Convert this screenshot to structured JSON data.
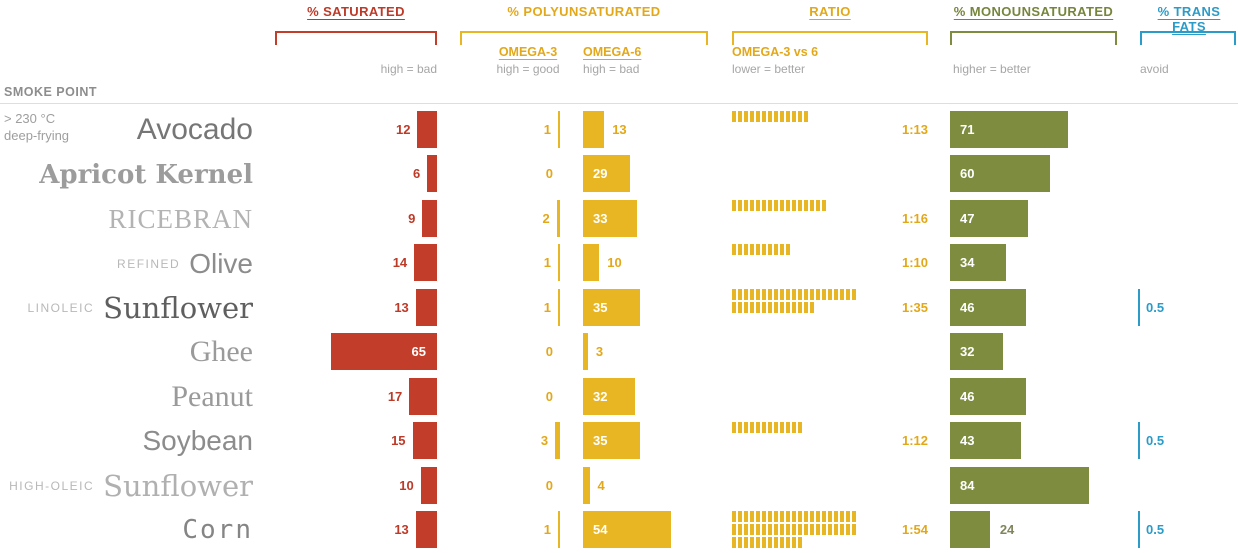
{
  "header": {
    "saturated": {
      "label": "% SATURATED",
      "note": "high = bad"
    },
    "polyunsaturated": {
      "label": "% POLYUNSATURATED"
    },
    "omega3": {
      "label": "OMEGA-3",
      "note": "high = good"
    },
    "omega6": {
      "label": "OMEGA-6",
      "note": "high = bad"
    },
    "ratio": {
      "label": "RATIO",
      "sublabel": "OMEGA-3 vs 6",
      "note": "lower = better"
    },
    "monounsaturated": {
      "label": "% MONOUNSATURATED",
      "note": "higher = better"
    },
    "trans_fats": {
      "label": "% TRANS FATS",
      "note": "avoid"
    }
  },
  "smoke_point": {
    "label": "SMOKE POINT",
    "value": "> 230 °C",
    "desc": "deep-frying"
  },
  "colors": {
    "saturated": "#c23e2b",
    "polyunsaturated": "#e9b623",
    "monounsaturated": "#7d8c3f",
    "trans_fats": "#2b9bc7"
  },
  "chart_data": {
    "type": "bar",
    "title": "",
    "value_unit": "percent of total fat",
    "ratio_meaning": "omega-3 : omega-6",
    "legend_position": "top",
    "rows": [
      {
        "prefix": "",
        "name": "Avocado",
        "name_style": "sans-light",
        "saturated": 12,
        "omega3": 1,
        "omega6": 13,
        "ratio": "1:13",
        "mono": 71,
        "trans": null
      },
      {
        "prefix": "",
        "name": "Apricot Kernel",
        "name_style": "slab",
        "saturated": 6,
        "omega3": 0,
        "omega6": 29,
        "ratio": null,
        "mono": 60,
        "trans": null
      },
      {
        "prefix": "",
        "name": "RICEBRAN",
        "name_style": "serif-caps",
        "saturated": 9,
        "omega3": 2,
        "omega6": 33,
        "ratio": "1:16",
        "mono": 47,
        "trans": null
      },
      {
        "prefix": "REFINED",
        "name": "Olive",
        "name_style": "sans",
        "saturated": 14,
        "omega3": 1,
        "omega6": 10,
        "ratio": "1:10",
        "mono": 34,
        "trans": null
      },
      {
        "prefix": "LINOLEIC",
        "name": "Sunflower",
        "name_style": "fancy",
        "saturated": 13,
        "omega3": 1,
        "omega6": 35,
        "ratio": "1:35",
        "mono": 46,
        "trans": 0.5
      },
      {
        "prefix": "",
        "name": "Ghee",
        "name_style": "serif",
        "saturated": 65,
        "omega3": 0,
        "omega6": 3,
        "ratio": null,
        "mono": 32,
        "trans": null
      },
      {
        "prefix": "",
        "name": "Peanut",
        "name_style": "serif",
        "saturated": 17,
        "omega3": 0,
        "omega6": 32,
        "ratio": null,
        "mono": 46,
        "trans": null
      },
      {
        "prefix": "",
        "name": "Soybean",
        "name_style": "sans",
        "saturated": 15,
        "omega3": 3,
        "omega6": 35,
        "ratio": "1:12",
        "mono": 43,
        "trans": 0.5
      },
      {
        "prefix": "HIGH-OLEIC",
        "name": "Sunflower",
        "name_style": "fancy-light",
        "saturated": 10,
        "omega3": 0,
        "omega6": 4,
        "ratio": null,
        "mono": 84,
        "trans": null
      },
      {
        "prefix": "",
        "name": "Corn",
        "name_style": "mono",
        "saturated": 13,
        "omega3": 1,
        "omega6": 54,
        "ratio": "1:54",
        "mono": 24,
        "trans": 0.5
      }
    ]
  }
}
